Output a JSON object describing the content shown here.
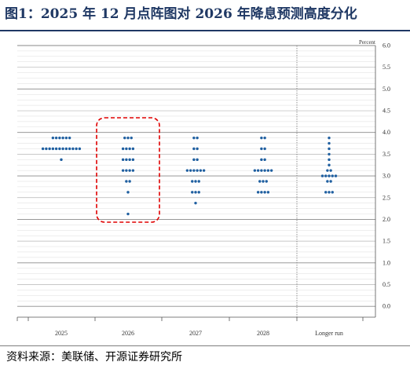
{
  "header": {
    "title": "图1：2025 年 12 月点阵图对 2026 年降息预测高度分化"
  },
  "footer": {
    "source": "资料来源：美联储、开源证券研究所"
  },
  "chart_data": {
    "type": "scatter",
    "unit_label": "Percent",
    "ylim": [
      -0.25,
      6.0
    ],
    "y_ticks": [
      6.0,
      5.5,
      5.0,
      4.5,
      4.0,
      3.5,
      3.0,
      2.5,
      2.0,
      1.5,
      1.0,
      0.5,
      0.0
    ],
    "y_tick_labels": [
      "6.0",
      "5.5",
      "5.0",
      "4.5",
      "4.0",
      "3.5",
      "3.0",
      "2.5",
      "2.0",
      "1.5",
      "1.0",
      "0.5",
      "0.0"
    ],
    "categories": [
      "2025",
      "2026",
      "2027",
      "2028",
      "Longer run"
    ],
    "dots": [
      {
        "category": "2025",
        "rates": [
          {
            "y": 3.875,
            "count": 6
          },
          {
            "y": 3.625,
            "count": 12
          },
          {
            "y": 3.375,
            "count": 1
          }
        ]
      },
      {
        "category": "2026",
        "rates": [
          {
            "y": 3.875,
            "count": 3
          },
          {
            "y": 3.625,
            "count": 4
          },
          {
            "y": 3.375,
            "count": 4
          },
          {
            "y": 3.125,
            "count": 4
          },
          {
            "y": 2.875,
            "count": 2
          },
          {
            "y": 2.625,
            "count": 1
          },
          {
            "y": 2.125,
            "count": 1
          }
        ]
      },
      {
        "category": "2027",
        "rates": [
          {
            "y": 3.875,
            "count": 2
          },
          {
            "y": 3.625,
            "count": 2
          },
          {
            "y": 3.375,
            "count": 2
          },
          {
            "y": 3.125,
            "count": 6
          },
          {
            "y": 2.875,
            "count": 3
          },
          {
            "y": 2.625,
            "count": 3
          },
          {
            "y": 2.375,
            "count": 1
          }
        ]
      },
      {
        "category": "2028",
        "rates": [
          {
            "y": 3.875,
            "count": 2
          },
          {
            "y": 3.625,
            "count": 2
          },
          {
            "y": 3.375,
            "count": 2
          },
          {
            "y": 3.125,
            "count": 6
          },
          {
            "y": 2.875,
            "count": 3
          },
          {
            "y": 2.625,
            "count": 4
          }
        ]
      },
      {
        "category": "Longer run",
        "rates": [
          {
            "y": 3.875,
            "count": 1
          },
          {
            "y": 3.75,
            "count": 1
          },
          {
            "y": 3.625,
            "count": 1
          },
          {
            "y": 3.5,
            "count": 1
          },
          {
            "y": 3.375,
            "count": 1
          },
          {
            "y": 3.25,
            "count": 1
          },
          {
            "y": 3.125,
            "count": 2
          },
          {
            "y": 3.0,
            "count": 5
          },
          {
            "y": 2.875,
            "count": 2
          },
          {
            "y": 2.625,
            "count": 3
          }
        ]
      }
    ],
    "grid": true,
    "highlight": {
      "category": "2026",
      "style": "red dashed rounded box"
    },
    "colors": {
      "dot": "#1f5fa0",
      "highlight": "#e00000",
      "grid_major": "#7f7f7f",
      "grid_minor": "#c8c8c8"
    }
  }
}
